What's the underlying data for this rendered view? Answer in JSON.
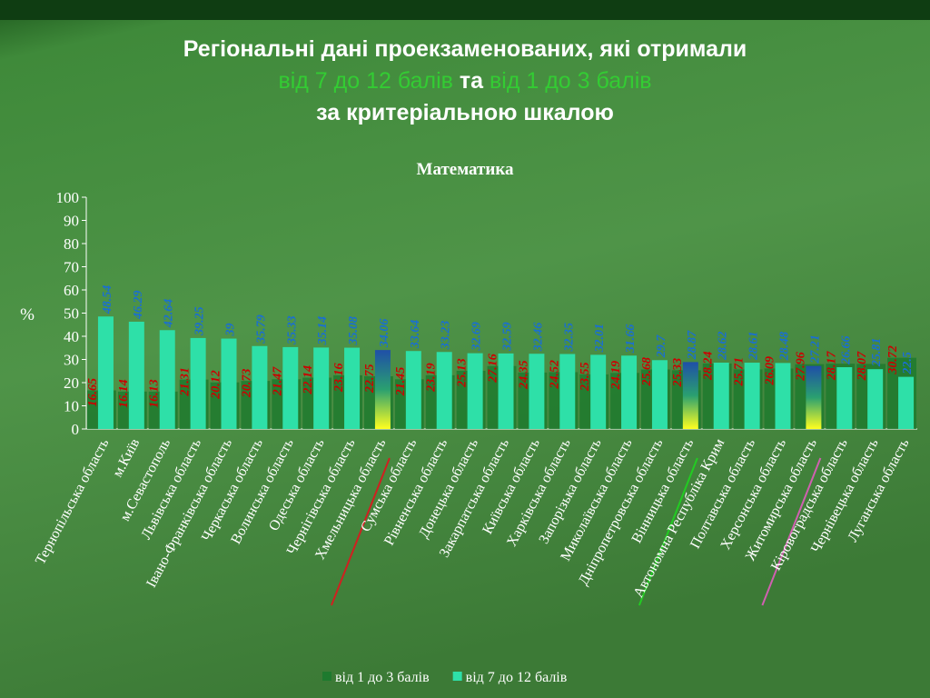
{
  "header": {
    "line1": "Регіональні дані проекзаменованих, які отримали",
    "part_a": "від 7 до 12 балів",
    "conj": "та",
    "part_b": "від 1 до 3 балів",
    "line3": "за критеріальною шкалою"
  },
  "chart_data": {
    "type": "bar",
    "title": "Математика",
    "ylabel": "%",
    "categories": [
      "Тернопільська область",
      "м.Київ",
      "м.Севастополь",
      "Львівська область",
      "Івано-Франківська область",
      "Черкаська область",
      "Волинська область",
      "Одеська область",
      "Чернігівська область",
      "Хмельницька область",
      "Сумська область",
      "Рівненська область",
      "Донецька область",
      "Закарпатська область",
      "Київська область",
      "Харківська область",
      "Запорізька область",
      "Миколаївська область",
      "Дніпропетровська область",
      "Вінницька область",
      "Автономна Республіка Крим",
      "Полтавська область",
      "Херсонська область",
      "Житомирська область",
      "Кіровоградська область",
      "Чернівецька область",
      "Луганська область"
    ],
    "series": [
      {
        "name": "від 1 до 3 балів",
        "color": "#1e7a2e",
        "label_color": "#cc0000",
        "values": [
          16.65,
          16.14,
          16.13,
          21.31,
          20.12,
          20.73,
          21.47,
          22.14,
          23.16,
          22.75,
          21.45,
          23.19,
          25.13,
          27.16,
          24.35,
          24.52,
          23.55,
          24.19,
          25.68,
          25.33,
          28.24,
          25.71,
          26.09,
          27.96,
          28.17,
          28.07,
          30.72
        ]
      },
      {
        "name": "від 7 до 12 балів",
        "color": "#2ee0a8",
        "label_color": "#1a6fd0",
        "values": [
          48.54,
          46.29,
          42.64,
          39.25,
          39,
          35.79,
          35.33,
          35.14,
          35.08,
          34.06,
          33.64,
          33.23,
          32.69,
          32.59,
          32.46,
          32.35,
          32.01,
          31.66,
          29.7,
          28.87,
          28.62,
          28.61,
          28.48,
          27.21,
          26.66,
          25.81,
          22.5
        ]
      }
    ],
    "highlight": [
      9,
      19,
      23
    ],
    "highlight_colors": [
      "#d02020",
      "#22cc22",
      "#d060b0"
    ],
    "ylim": [
      0,
      100
    ],
    "yticks": [
      0,
      10,
      20,
      30,
      40,
      50,
      60,
      70,
      80,
      90,
      100
    ],
    "legend": "bottom"
  }
}
